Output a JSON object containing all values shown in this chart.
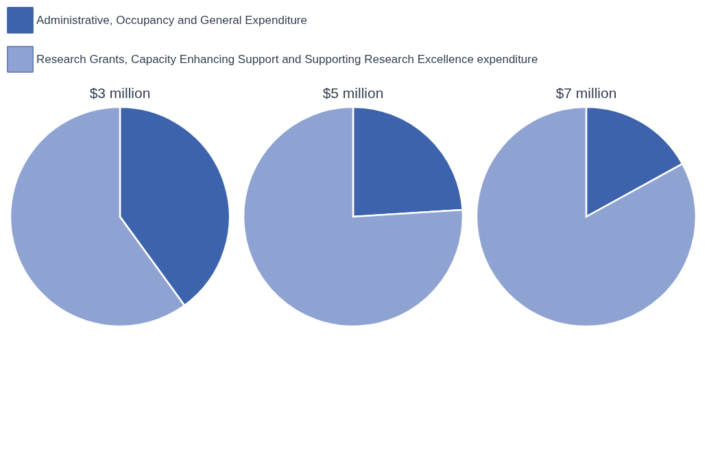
{
  "chart_data": [
    {
      "type": "pie",
      "title": "$3 million",
      "categories": [
        "Administrative, Occupancy and General Expenditure",
        "Research Grants, Capacity Enhancing Support and Supporting Research Excellence expenditure"
      ],
      "values": [
        40,
        60
      ],
      "colors": [
        "#3d63ac",
        "#8fa3d3"
      ],
      "legend": "top"
    },
    {
      "type": "pie",
      "title": "$5 million",
      "categories": [
        null,
        null
      ],
      "values": [
        24,
        76
      ],
      "colors": [
        "#3d63ac",
        "#8fa3d3"
      ]
    },
    {
      "type": "pie",
      "title": "$7 million",
      "categories": [
        null,
        null
      ],
      "values": [
        17,
        83
      ],
      "colors": [
        "#3d63ac",
        "#8fa3d3"
      ]
    }
  ]
}
